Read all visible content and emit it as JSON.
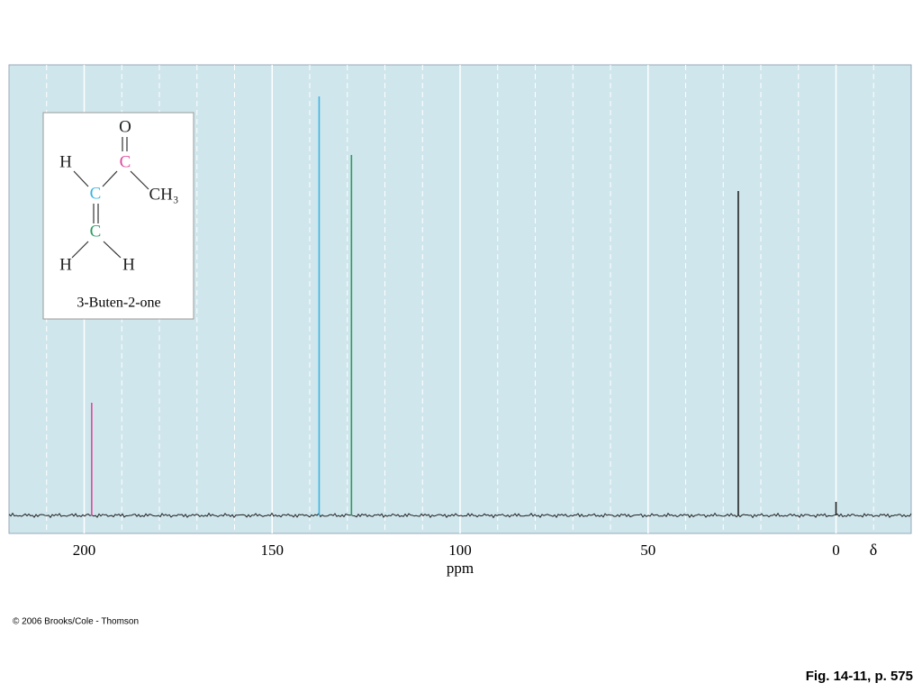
{
  "chart_data": {
    "type": "spectrum",
    "xlabel": "ppm",
    "axis_symbol": "δ",
    "xlim": [
      220,
      -20
    ],
    "ylim": [
      -4,
      100
    ],
    "xticks": [
      200,
      150,
      100,
      50,
      0
    ],
    "minor_grid": [
      210,
      190,
      180,
      170,
      160,
      140,
      130,
      120,
      110,
      90,
      80,
      70,
      60,
      40,
      30,
      20,
      10,
      -10
    ],
    "grid": true,
    "x": [
      198,
      137.5,
      128.9,
      26,
      0
    ],
    "values": [
      25,
      93,
      80,
      72,
      3
    ],
    "colors": [
      "#e0489e",
      "#3cb4e4",
      "#2f9c62",
      "#222222",
      "#222222"
    ],
    "molecule": {
      "name": "3-Buten-2-one",
      "atoms": [
        "O",
        "C",
        "H",
        "C",
        "CH₃",
        "C",
        "H",
        "H"
      ],
      "atom_colors": [
        "#222222",
        "#e0489e",
        "#222222",
        "#3cb4e4",
        "#222222",
        "#2f9c62",
        "#222222",
        "#222222"
      ]
    }
  },
  "footer": {
    "copyright": "© 2006 Brooks/Cole - Thomson",
    "caption": "Fig. 14-11, p. 575"
  }
}
